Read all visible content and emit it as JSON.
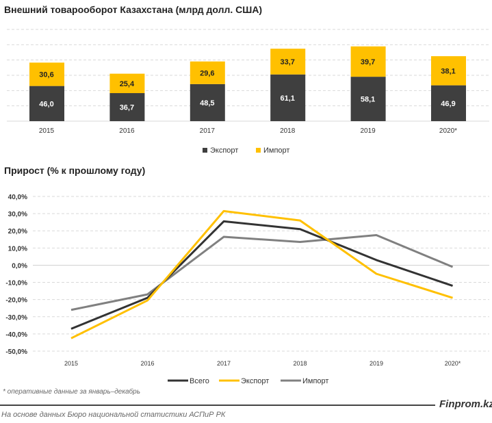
{
  "chart_data": [
    {
      "type": "bar",
      "stacked": true,
      "title": "Внешний товарооборот Казахстана (млрд долл. США)",
      "categories": [
        "2015",
        "2016",
        "2017",
        "2018",
        "2019",
        "2020*"
      ],
      "series": [
        {
          "name": "Экспорт",
          "color": "#3f3f3f",
          "values": [
            46.0,
            36.7,
            48.5,
            61.1,
            58.1,
            46.9
          ],
          "labels": [
            "46,0",
            "36,7",
            "48,5",
            "61,1",
            "58,1",
            "46,9"
          ]
        },
        {
          "name": "Импорт",
          "color": "#ffc000",
          "values": [
            30.6,
            25.4,
            29.6,
            33.7,
            39.7,
            38.1
          ],
          "labels": [
            "30,6",
            "25,4",
            "29,6",
            "33,7",
            "39,7",
            "38,1"
          ]
        }
      ],
      "ylim": [
        0,
        120
      ],
      "grid": true,
      "legend": "bottom"
    },
    {
      "type": "line",
      "title": "Прирост (% к прошлому году)",
      "categories": [
        "2015",
        "2016",
        "2017",
        "2018",
        "2019",
        "2020*"
      ],
      "series": [
        {
          "name": "Всего",
          "color": "#333333",
          "values": [
            -37,
            -19,
            25.5,
            21,
            3,
            -12
          ]
        },
        {
          "name": "Экспорт",
          "color": "#ffc000",
          "values": [
            -42.5,
            -20.5,
            31.5,
            26,
            -5,
            -19
          ]
        },
        {
          "name": "Импорт",
          "color": "#808080",
          "values": [
            -26,
            -17,
            16.5,
            13.5,
            17.5,
            -1
          ]
        }
      ],
      "yticks": [
        "40,0%",
        "30,0%",
        "20,0%",
        "10,0%",
        "0,0%",
        "-10,0%",
        "-20,0%",
        "-30,0%",
        "-40,0%",
        "-50,0%"
      ],
      "ylim": [
        -50,
        40
      ],
      "grid": true,
      "legend": "bottom"
    }
  ],
  "footnote": "* оперативные данные за январь–декабрь",
  "brand": "Finprom.kz",
  "source": "На основе данных  Бюро национальной  статистики АСПиР РК"
}
